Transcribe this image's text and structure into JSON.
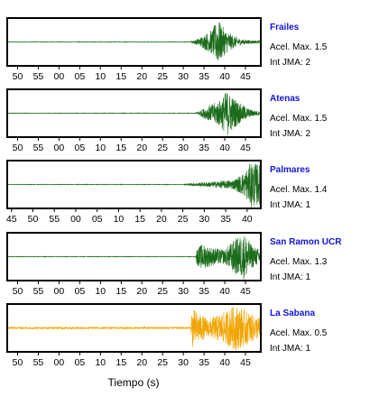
{
  "chart_data": [
    {
      "type": "line",
      "station": "Frailes",
      "acel_label": "Acel. Max. 1.5",
      "int_label": "Int JMA: 2",
      "color": "#1a6b1a",
      "tick_labels": [
        "50",
        "55",
        "00",
        "05",
        "10",
        "15",
        "20",
        "25",
        "30",
        "35",
        "40",
        "45"
      ],
      "xlim": [
        47.5,
        108.7
      ],
      "ylim": [
        -1,
        1
      ],
      "series": [
        {
          "x": [
            47.5,
            91.5,
            93.5,
            95.0,
            97.0,
            98.3,
            100.0,
            102.0,
            104.0,
            108.7
          ],
          "amplitude": [
            0.01,
            0.01,
            0.14,
            0.3,
            0.55,
            1.0,
            0.55,
            0.28,
            0.12,
            0.04
          ]
        }
      ]
    },
    {
      "type": "line",
      "station": "Atenas",
      "acel_label": "Acel. Max. 1.5",
      "int_label": "Int JMA: 2",
      "color": "#1a6b1a",
      "tick_labels": [
        "50",
        "55",
        "00",
        "05",
        "10",
        "15",
        "20",
        "25",
        "30",
        "35",
        "40",
        "45"
      ],
      "xlim": [
        47.5,
        108.7
      ],
      "ylim": [
        -1,
        1
      ],
      "series": [
        {
          "x": [
            47.5,
            92.8,
            95.0,
            97.0,
            99.0,
            100.5,
            102.0,
            104.0,
            106.0,
            108.7
          ],
          "amplitude": [
            0.01,
            0.01,
            0.22,
            0.4,
            0.6,
            1.0,
            0.7,
            0.4,
            0.18,
            0.06
          ]
        }
      ]
    },
    {
      "type": "line",
      "station": "Palmares",
      "acel_label": "Acel. Max. 1.4",
      "int_label": "Int JMA: 1",
      "color": "#1a6b1a",
      "tick_labels": [
        "45",
        "50",
        "55",
        "00",
        "05",
        "10",
        "15",
        "20",
        "25",
        "30",
        "35",
        "40"
      ],
      "xlim": [
        44.0,
        103.2
      ],
      "ylim": [
        -1,
        1
      ],
      "series": [
        {
          "x": [
            44.0,
            85.0,
            87.0,
            92.0,
            97.0,
            99.5,
            101.0,
            103.2
          ],
          "amplitude": [
            0.01,
            0.01,
            0.06,
            0.12,
            0.22,
            0.55,
            1.0,
            0.85
          ]
        }
      ]
    },
    {
      "type": "line",
      "station": "San Ramon UCR",
      "acel_label": "Acel. Max. 1.3",
      "int_label": "Int JMA: 1",
      "color": "#1a6b1a",
      "tick_labels": [
        "50",
        "55",
        "00",
        "05",
        "10",
        "15",
        "20",
        "25",
        "30",
        "35",
        "40",
        "45"
      ],
      "xlim": [
        47.5,
        108.7
      ],
      "ylim": [
        -1,
        1
      ],
      "series": [
        {
          "x": [
            47.5,
            93.0,
            93.2,
            94.5,
            97.0,
            100.0,
            101.5,
            103.0,
            105.0,
            106.5,
            108.7
          ],
          "amplitude": [
            0.01,
            0.01,
            0.35,
            0.55,
            0.4,
            0.3,
            0.6,
            0.85,
            1.0,
            0.5,
            0.3
          ]
        }
      ]
    },
    {
      "type": "line",
      "station": "La Sabana",
      "acel_label": "Acel. Max. 0.5",
      "int_label": "Int JMA: 1",
      "color": "#f2a500",
      "tick_labels": [
        "50",
        "55",
        "00",
        "05",
        "10",
        "15",
        "20",
        "25",
        "30",
        "35",
        "40",
        "45"
      ],
      "xlim": [
        47.5,
        108.7
      ],
      "ylim": [
        -1,
        1
      ],
      "series": [
        {
          "x": [
            47.5,
            91.8,
            92.0,
            94.0,
            96.0,
            98.0,
            100.0,
            102.5,
            105.0,
            107.0,
            108.7
          ],
          "amplitude": [
            0.04,
            0.04,
            0.9,
            0.6,
            0.4,
            0.55,
            0.7,
            1.0,
            0.8,
            0.55,
            0.45
          ]
        }
      ]
    }
  ],
  "x_axis_title": "Tiempo (s)"
}
